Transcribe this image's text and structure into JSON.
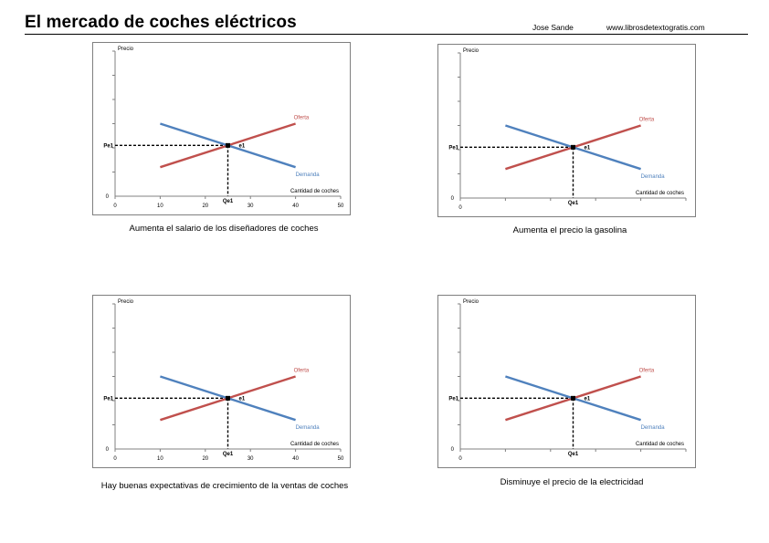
{
  "header": {
    "title": "El mercado de coches eléctricos",
    "author": "Jose Sande",
    "website": "www.librosdetextogratis.com"
  },
  "colors": {
    "supply": "#c0504d",
    "demand": "#4f81bd",
    "axis": "#808080",
    "frame": "#7f7f7f"
  },
  "chart_data": [
    {
      "type": "line",
      "caption": "Aumenta el salario de los diseñadores de coches",
      "ylabel": "Precio",
      "xlabel": "Cantidad de coches",
      "y_zero_label": "0",
      "xlim": [
        0,
        50
      ],
      "x_ticks": [
        "0",
        "10",
        "20",
        "30",
        "40",
        "50"
      ],
      "x_tick_values": [
        0,
        10,
        20,
        30,
        40,
        50
      ],
      "show_x_tick_labels": true,
      "ylim": [
        0,
        100
      ],
      "series": [
        {
          "name": "Oferta",
          "x": [
            10,
            40
          ],
          "y": [
            20,
            50
          ]
        },
        {
          "name": "Demanda",
          "x": [
            10,
            40
          ],
          "y": [
            50,
            20
          ]
        }
      ],
      "equilibrium": {
        "label": "e1",
        "price_label": "Pe1",
        "quantity_label": "Qe1",
        "x": 25,
        "y": 35
      }
    },
    {
      "type": "line",
      "caption": "Aumenta el precio la gasolina",
      "ylabel": "Precio",
      "xlabel": "Cantidad de coches",
      "y_zero_label": "0",
      "xlim": [
        0,
        50
      ],
      "x_ticks": [
        "0",
        "10",
        "20",
        "30",
        "40",
        "50"
      ],
      "x_tick_values": [
        0,
        10,
        20,
        30,
        40,
        50
      ],
      "show_x_tick_labels": false,
      "x_zero_label": "0",
      "ylim": [
        0,
        100
      ],
      "series": [
        {
          "name": "Oferta",
          "x": [
            10,
            40
          ],
          "y": [
            20,
            50
          ]
        },
        {
          "name": "Demanda",
          "x": [
            10,
            40
          ],
          "y": [
            50,
            20
          ]
        }
      ],
      "equilibrium": {
        "label": "e1",
        "price_label": "Pe1",
        "quantity_label": "Qe1",
        "x": 25,
        "y": 35
      }
    },
    {
      "type": "line",
      "caption": "Hay buenas expectativas de crecimiento de la ventas de coches",
      "ylabel": "Precio",
      "xlabel": "Cantidad de coches",
      "y_zero_label": "0",
      "xlim": [
        0,
        50
      ],
      "x_ticks": [
        "0",
        "10",
        "20",
        "30",
        "40",
        "50"
      ],
      "x_tick_values": [
        0,
        10,
        20,
        30,
        40,
        50
      ],
      "show_x_tick_labels": true,
      "ylim": [
        0,
        100
      ],
      "series": [
        {
          "name": "Oferta",
          "x": [
            10,
            40
          ],
          "y": [
            20,
            50
          ]
        },
        {
          "name": "Demanda",
          "x": [
            10,
            40
          ],
          "y": [
            50,
            20
          ]
        }
      ],
      "equilibrium": {
        "label": "e1",
        "price_label": "Pe1",
        "quantity_label": "Qe1",
        "x": 25,
        "y": 35
      }
    },
    {
      "type": "line",
      "caption": "Disminuye el precio de la electricidad",
      "ylabel": "Precio",
      "xlabel": "Cantidad de coches",
      "y_zero_label": "0",
      "xlim": [
        0,
        50
      ],
      "x_ticks": [
        "0",
        "10",
        "20",
        "30",
        "40",
        "50"
      ],
      "x_tick_values": [
        0,
        10,
        20,
        30,
        40,
        50
      ],
      "show_x_tick_labels": false,
      "x_zero_label": "0",
      "ylim": [
        0,
        100
      ],
      "series": [
        {
          "name": "Oferta",
          "x": [
            10,
            40
          ],
          "y": [
            20,
            50
          ]
        },
        {
          "name": "Demanda",
          "x": [
            10,
            40
          ],
          "y": [
            50,
            20
          ]
        }
      ],
      "equilibrium": {
        "label": "e1",
        "price_label": "Pe1",
        "quantity_label": "Qe1",
        "x": 25,
        "y": 35
      }
    }
  ]
}
